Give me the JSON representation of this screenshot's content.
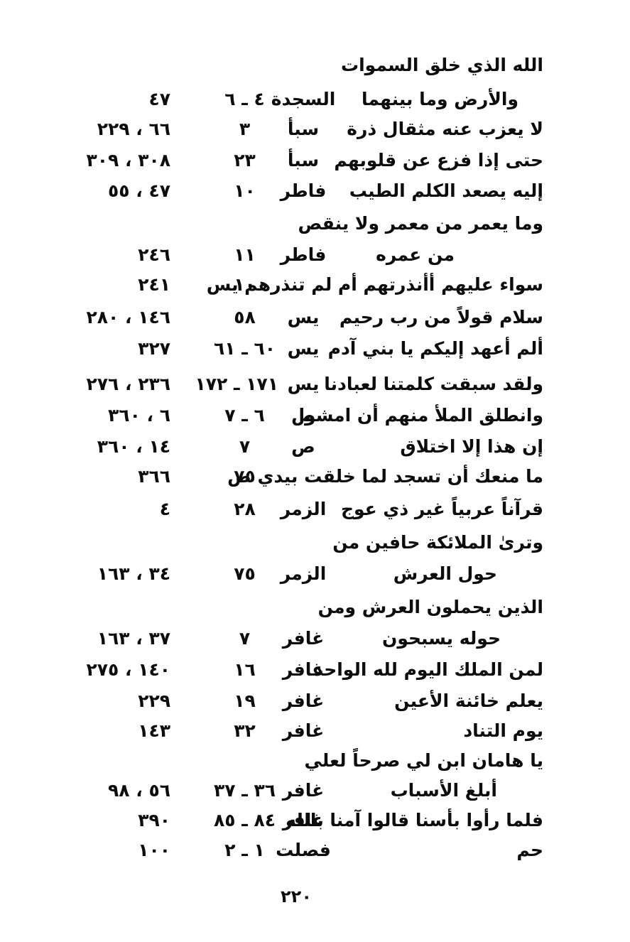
{
  "colors": {
    "ink": "#0d0d0d",
    "paper": "#ffffff"
  },
  "page_number": "٢٢٠",
  "rows": [
    {
      "text": "الله الذي خلق السموات",
      "surah": "",
      "verse": "",
      "pages": ""
    },
    {
      "text": "والأرض وما بينهما",
      "surah": "السجدة",
      "verse": "٤ ـ ٦",
      "pages": "٤٧"
    },
    {
      "text": "لا يعزب عنه مثقال ذرة",
      "surah": "سبأ",
      "verse": "٣",
      "pages": "٦٦ ، ٢٢٩"
    },
    {
      "text": "حتى إذا فزع عن قلوبهم",
      "surah": "سبأ",
      "verse": "٢٣",
      "pages": "٣٠٨ ، ٣٠٩"
    },
    {
      "text": "إليه يصعد الكلم الطيب",
      "surah": "فاطر",
      "verse": "١٠",
      "pages": "٤٧ ، ٥٥"
    },
    {
      "text": "وما يعمر من معمر ولا ينقص",
      "surah": "",
      "verse": "",
      "pages": ""
    },
    {
      "text": "من عمره",
      "surah": "فاطر",
      "verse": "١١",
      "pages": "٢٤٦"
    },
    {
      "text": "سواء عليهم أأنذرتهم أم لم تنذرهم يس",
      "surah": "",
      "verse": "١٠",
      "pages": "٢٤١"
    },
    {
      "text": "سلام قولاً من رب رحيم",
      "surah": "يس",
      "verse": "٥٨",
      "pages": "١٤٦ ، ٢٨٠"
    },
    {
      "text": "ألم أعهد إليكم يا بني آدم",
      "surah": "يس",
      "verse": "٦٠ ـ ٦١",
      "pages": "٣٢٧"
    },
    {
      "text": "ولقد سبقت كلمتنا لعبادنا",
      "surah": "يس",
      "verse": "١٧١ ـ ١٧٢",
      "pages": "٢٣٦ ، ٢٧٦"
    },
    {
      "text": "وانطلق الملأ منهم أن امشوا",
      "surah": "ص",
      "verse": "٦ ـ ٧",
      "pages": "٦ ، ٣٦٠"
    },
    {
      "text": "إن هذا إلا اختلاق",
      "surah": "ص",
      "verse": "٧",
      "pages": "١٤ ، ٣٦٠"
    },
    {
      "text": "ما منعك أن تسجد لما خلقت بيدي ص",
      "surah": "",
      "verse": "٧٥",
      "pages": "٣٦٦"
    },
    {
      "text": "قرآناً عربياً غير ذي عوج",
      "surah": "الزمر",
      "verse": "٢٨",
      "pages": "٤"
    },
    {
      "text": "وترىٰ الملائكة حافين من",
      "surah": "",
      "verse": "",
      "pages": ""
    },
    {
      "text": "حول العرش",
      "surah": "الزمر",
      "verse": "٧٥",
      "pages": "٣٤ ، ١٦٣"
    },
    {
      "text": "الذين يحملون العرش ومن",
      "surah": "",
      "verse": "",
      "pages": ""
    },
    {
      "text": "حوله يسبحون",
      "surah": "غافر",
      "verse": "٧",
      "pages": "٣٧ ، ١٦٣"
    },
    {
      "text": "لمن الملك اليوم لله الواحد",
      "surah": "غافر",
      "verse": "١٦",
      "pages": "١٤٠ ، ٢٧٥"
    },
    {
      "text": "يعلم خائنة الأعين",
      "surah": "غافر",
      "verse": "١٩",
      "pages": "٢٢٩"
    },
    {
      "text": "يوم التناد",
      "surah": "غافر",
      "verse": "٣٢",
      "pages": "١٤٣"
    },
    {
      "text": "يا هامان ابن لي صرحاً لعلي",
      "surah": "",
      "verse": "",
      "pages": ""
    },
    {
      "text": "أبلغ الأسباب",
      "surah": "غافر",
      "verse": "٣٦ ـ ٣٧",
      "pages": "٥٦ ، ٩٨"
    },
    {
      "text": "فلما رأوا بأسنا قالوا آمنا بالله",
      "surah": "غافر",
      "verse": "٨٤ ـ ٨٥",
      "pages": "٣٩٠"
    },
    {
      "text": "حم",
      "surah": "فصلت",
      "verse": "١ ـ ٢",
      "pages": "١٠٠"
    }
  ]
}
